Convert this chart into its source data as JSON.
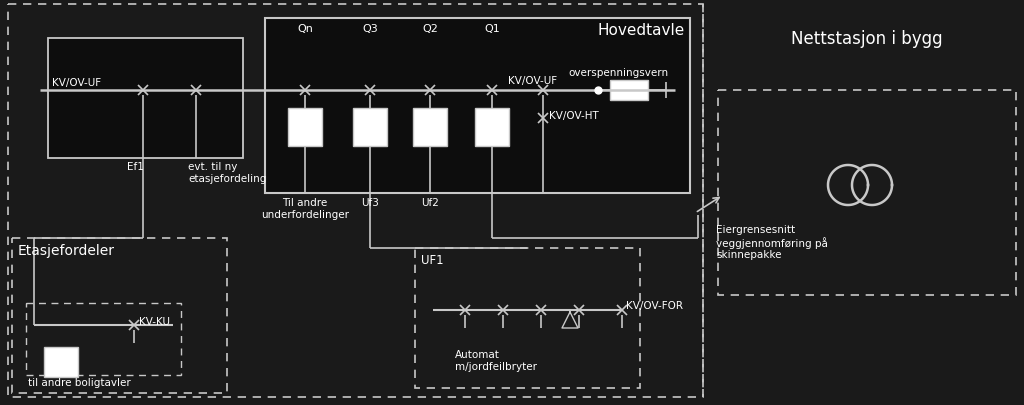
{
  "bg_color": "#1a1a1a",
  "fg_color": "#ffffff",
  "line_color": "#c8c8c8",
  "title_Hovedtavle": "Hovedtavle",
  "title_Nettstasjon": "Nettstasjon i bygg",
  "title_Etasjefordeler": "Etasjefordeler",
  "label_Qn": "Qn",
  "label_Q3": "Q3",
  "label_Q2": "Q2",
  "label_Q1": "Q1",
  "label_KV_OV_UF_left": "KV/OV-UF",
  "label_KV_OV_UF_right": "KV/OV-UF",
  "label_KV_OV_HT": "KV/OV-HT",
  "label_KV_OV_FOR": "KV/OV-FOR",
  "label_KV_KU": "KV-KU",
  "label_overspenningsvern": "overspenningsvern",
  "label_Ef1": "Ef1",
  "label_evt": "evt. til ny\netasjefordeling",
  "label_Til_andre": "Til andre\nunderfordelinger",
  "label_Uf3": "Uf3",
  "label_Uf2": "Uf2",
  "label_UF1": "UF1",
  "label_Automat": "Automat\nm/jordfeilbryter",
  "label_til_andre_boligtavler": "til andre boligtavler",
  "label_Eiergrensesnitt": "Eiergrensesnitt\nveggjennomføring på\nskinnepakke"
}
